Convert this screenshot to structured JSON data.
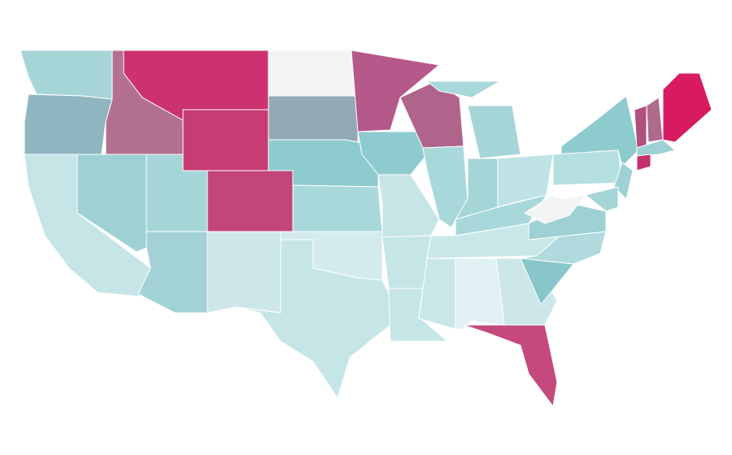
{
  "map": {
    "regions": [
      {
        "color": "#a6d5d8"
      },
      {
        "color": "#8fb6c0"
      },
      {
        "color": "#c5e5e7"
      },
      {
        "color": "#9dd1d3"
      },
      {
        "color": "#b3708f"
      },
      {
        "color": "#cc326f"
      },
      {
        "color": "#c73c72"
      },
      {
        "color": "#a6d5d8"
      },
      {
        "color": "#c2467a"
      },
      {
        "color": "#a3d2d6"
      },
      {
        "color": "#cde7e9"
      },
      {
        "color": "#f2f3f4"
      },
      {
        "color": "#93a9b6"
      },
      {
        "color": "#8ecbcf"
      },
      {
        "color": "#a9d8da"
      },
      {
        "color": "#d3ebed"
      },
      {
        "color": "#c6e5e7"
      },
      {
        "color": "#b5588a"
      },
      {
        "color": "#8ecbcf"
      },
      {
        "color": "#c6e5e7"
      },
      {
        "color": "#c6e5e7"
      },
      {
        "color": "#c6e5e7"
      },
      {
        "color": "#b0648c"
      },
      {
        "color": "#a9d8da"
      },
      {
        "color": "#a6d5d8"
      },
      {
        "color": "#a6d5d8"
      },
      {
        "color": "#bfe2e4"
      },
      {
        "color": "#a9d8da"
      },
      {
        "color": "#c9e7e9"
      },
      {
        "color": "#c9e7e9"
      },
      {
        "color": "#e1f0f2"
      },
      {
        "color": "#cde7e9"
      },
      {
        "color": "#b0dadd"
      },
      {
        "color": "#c4497c"
      },
      {
        "color": "#88c6c9"
      },
      {
        "color": "#9dd1d3"
      },
      {
        "color": "#8ecbcf"
      },
      {
        "color": "#f2f3f4"
      },
      {
        "color": "#b6dfe0"
      },
      {
        "color": "#9dd1d3"
      },
      {
        "color": "#b0507f"
      },
      {
        "color": "#b06a8e"
      },
      {
        "color": "#d81b60"
      },
      {
        "color": "#9dd1d3"
      },
      {
        "color": "#c4306c"
      },
      {
        "color": "#a6d5d8"
      },
      {
        "color": "#a9d8da"
      }
    ]
  }
}
